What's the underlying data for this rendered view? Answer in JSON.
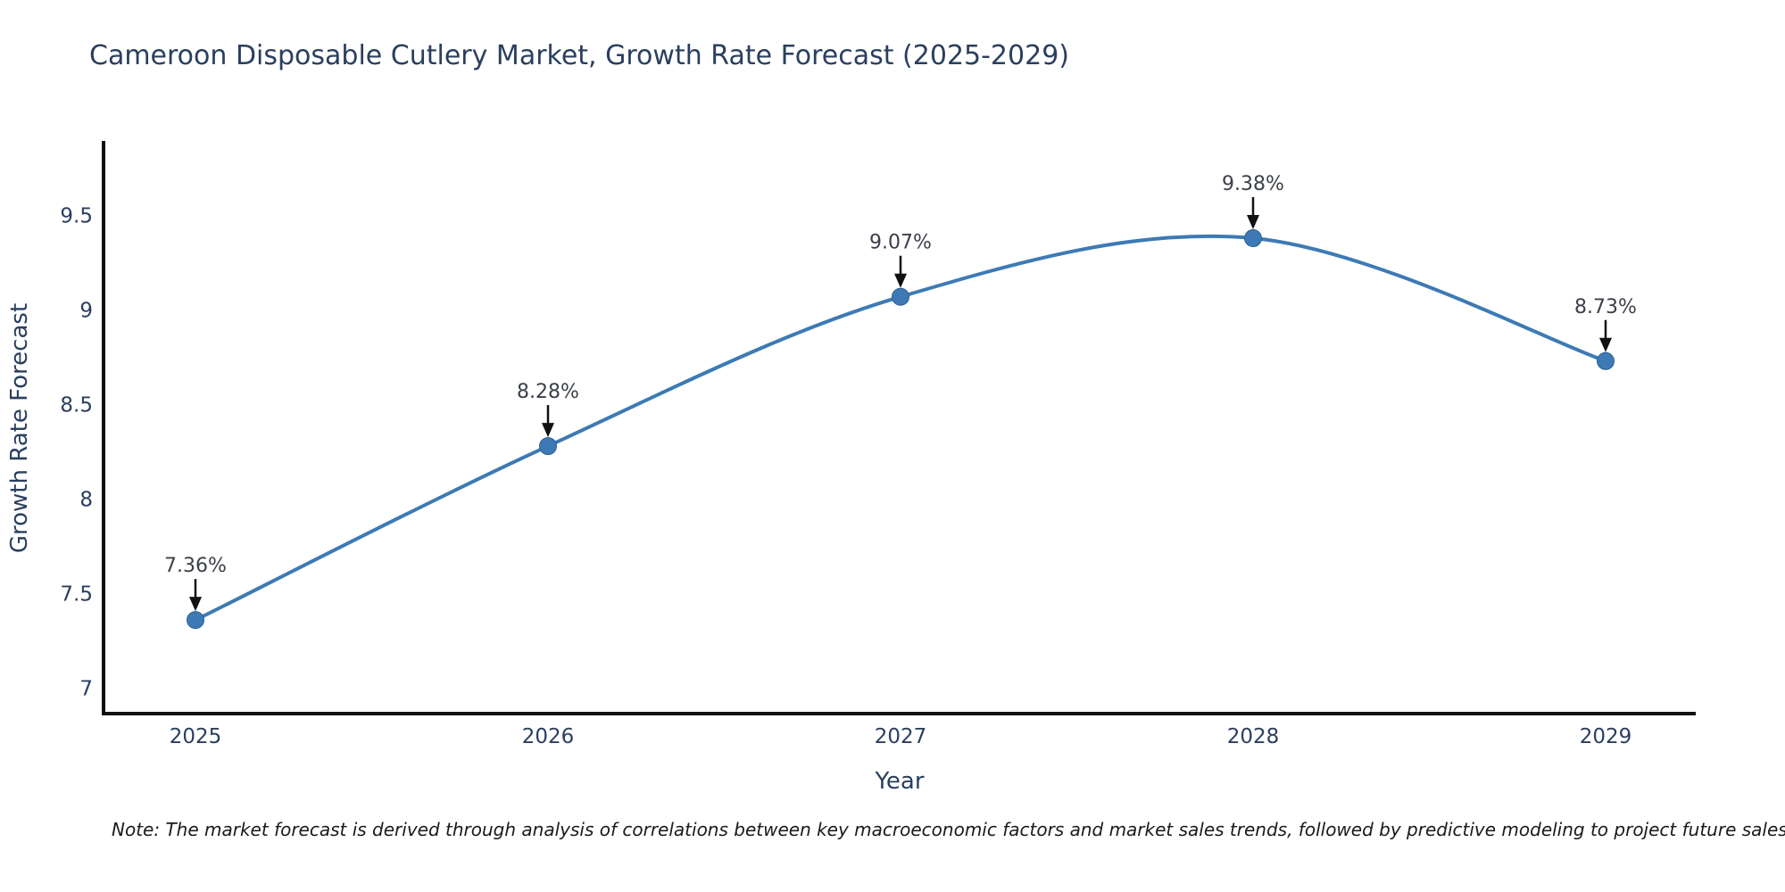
{
  "title": "Cameroon Disposable Cutlery Market, Growth Rate Forecast (2025-2029)",
  "note": "Note: The market forecast is derived through analysis of correlations between key macroeconomic factors and market sales trends, followed by predictive modeling to project future sales",
  "chart_data": {
    "type": "line",
    "title": "Cameroon Disposable Cutlery Market, Growth Rate Forecast (2025-2029)",
    "xlabel": "Year",
    "ylabel": "Growth Rate Forecast",
    "categories": [
      "2025",
      "2026",
      "2027",
      "2028",
      "2029"
    ],
    "series": [
      {
        "name": "Growth Rate Forecast",
        "values": [
          7.36,
          8.28,
          9.07,
          9.38,
          8.73
        ]
      }
    ],
    "point_labels": [
      "7.36%",
      "8.28%",
      "9.07%",
      "9.38%",
      "8.73%"
    ],
    "yticks": [
      7,
      7.5,
      8,
      8.5,
      9,
      9.5
    ],
    "ylim": [
      6.865,
      9.885
    ],
    "line_shape": "spline",
    "grid": false,
    "legend_position": "none",
    "colors": {
      "line": "#3d7ab5",
      "marker": "#3d7ab5",
      "marker_edge": "#2c5f8f",
      "axis": "#111111",
      "arrow": "#111111",
      "annotation_text": "#3c4049",
      "tick_text": "#2a3f5f",
      "axis_title_text": "#2a3f5f",
      "title_text": "#2a3f5f",
      "note_text": "#1a1a1a"
    }
  }
}
